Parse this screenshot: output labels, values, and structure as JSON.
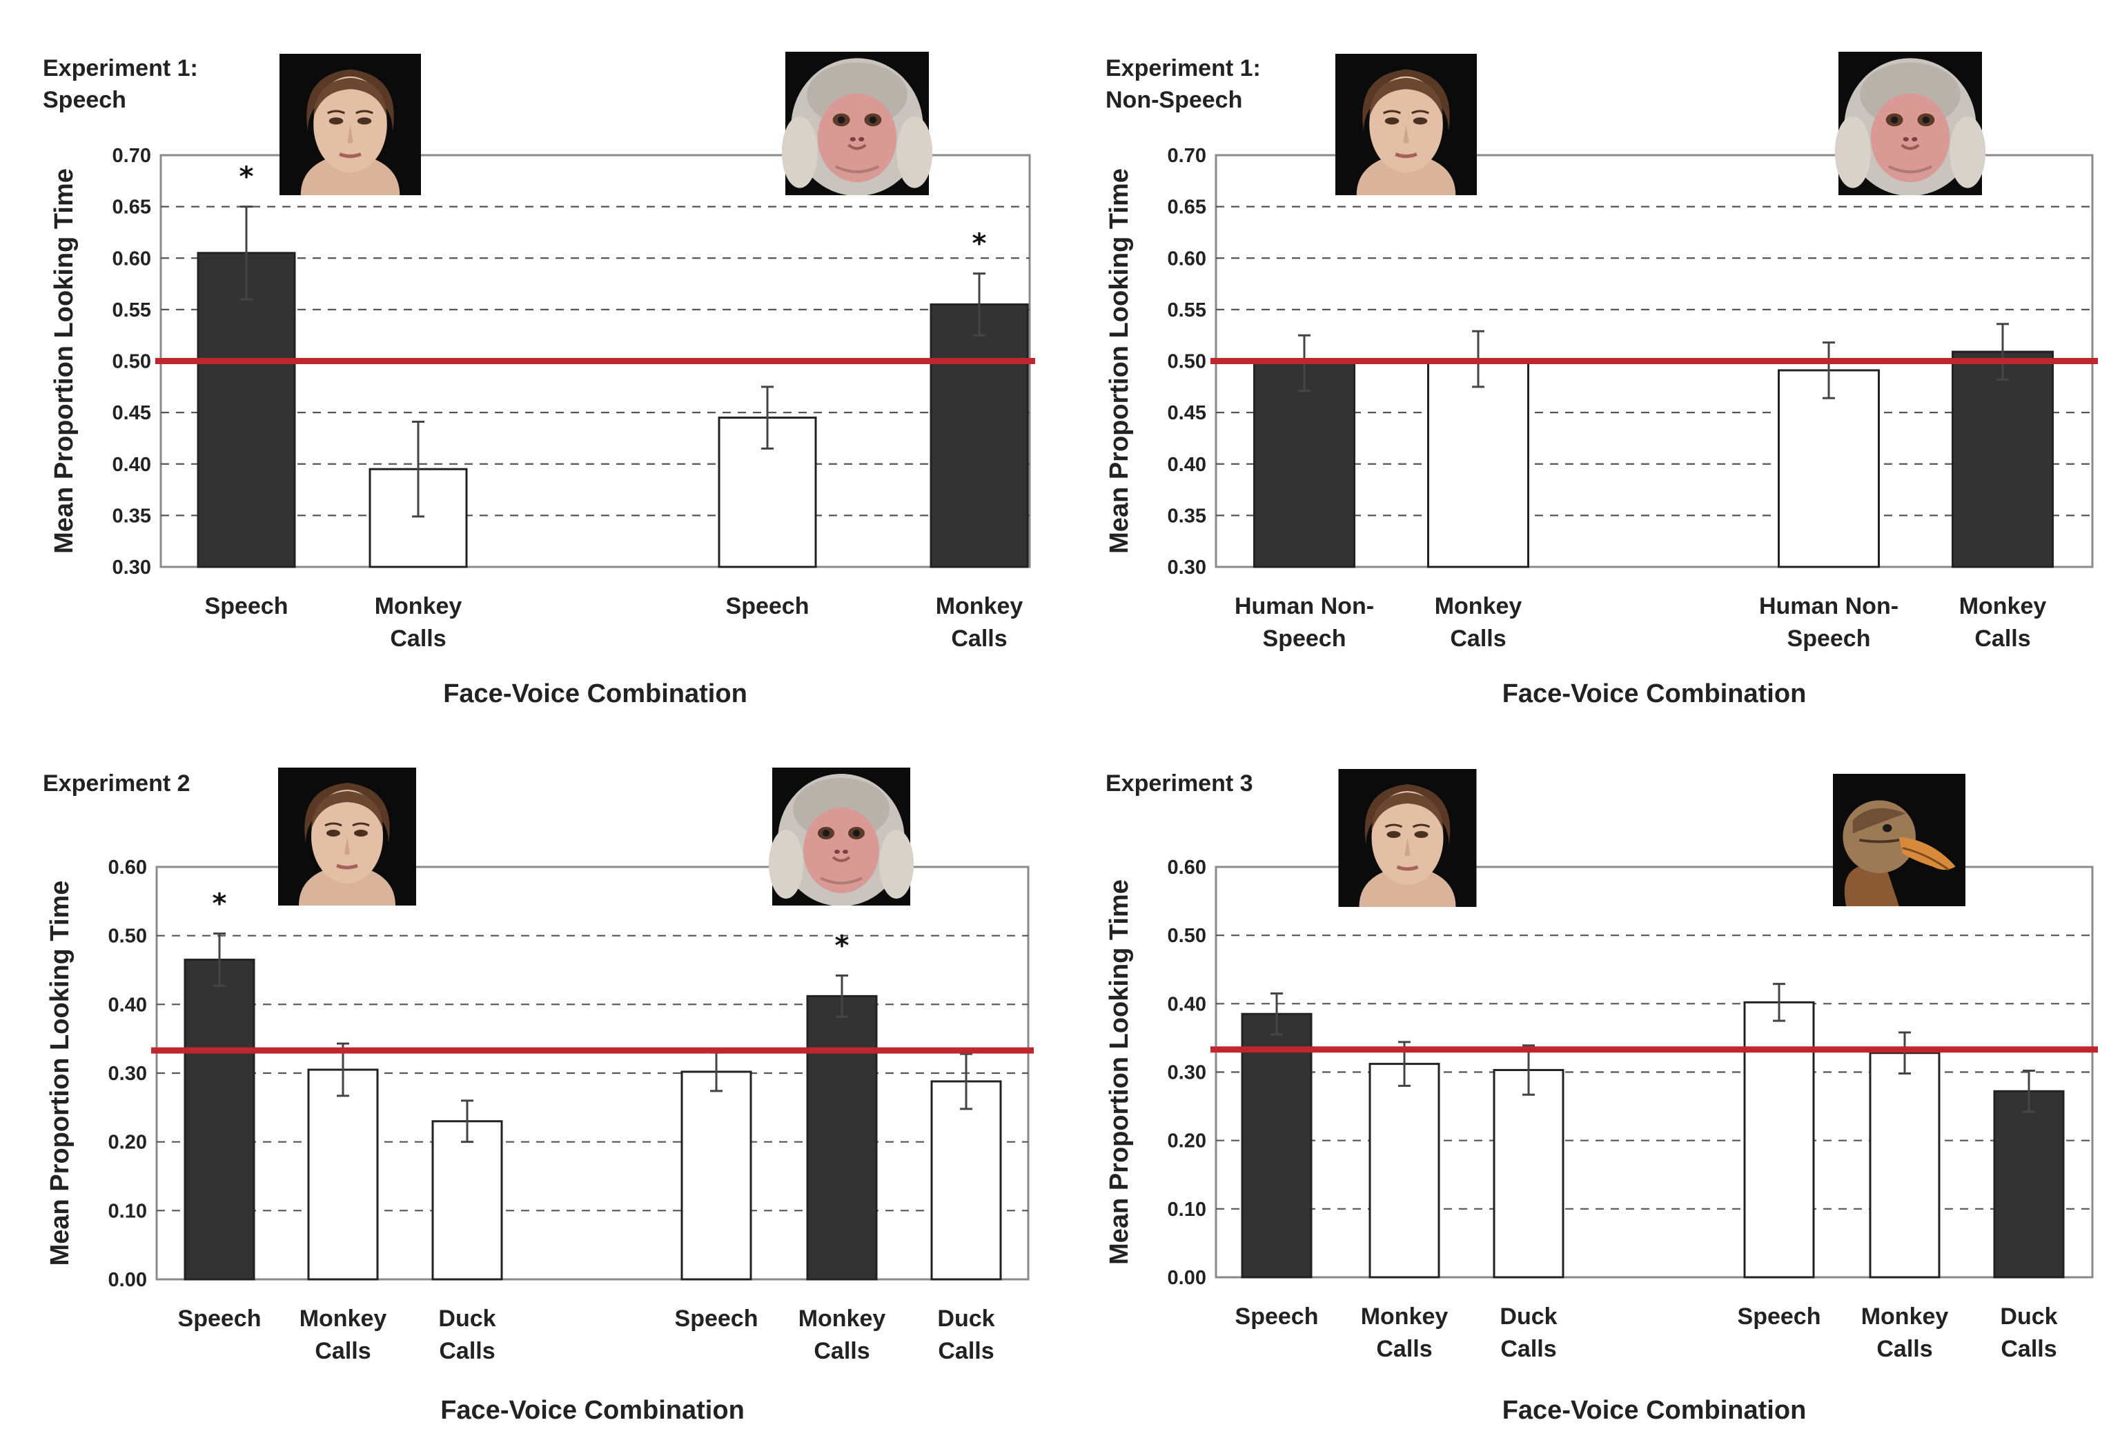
{
  "chart_data": [
    {
      "type": "bar",
      "title": "Experiment 1:\nSpeech",
      "xlabel": "Face-Voice Combination",
      "ylabel": "Mean Proportion Looking Time",
      "ylim": [
        0.3,
        0.7
      ],
      "yticks": [
        "0.70",
        "0.65",
        "0.60",
        "0.55",
        "0.50",
        "0.45",
        "0.40",
        "0.35",
        "0.30"
      ],
      "reference_line": 0.5,
      "grid": true,
      "face_images": [
        "human-face",
        "monkey-face"
      ],
      "groups": [
        {
          "face": "human-face",
          "bars": [
            {
              "label": "Speech",
              "value": 0.605,
              "error": 0.045,
              "fill": "dark",
              "sig": true
            },
            {
              "label": "Monkey\nCalls",
              "value": 0.395,
              "error": 0.046,
              "fill": "white",
              "sig": false
            }
          ]
        },
        {
          "face": "monkey-face",
          "bars": [
            {
              "label": "Speech",
              "value": 0.445,
              "error": 0.03,
              "fill": "white",
              "sig": false
            },
            {
              "label": "Monkey\nCalls",
              "value": 0.555,
              "error": 0.03,
              "fill": "dark",
              "sig": true
            }
          ]
        }
      ]
    },
    {
      "type": "bar",
      "title": "Experiment 1:\nNon-Speech",
      "xlabel": "Face-Voice Combination",
      "ylabel": "Mean Proportion Looking Time",
      "ylim": [
        0.3,
        0.7
      ],
      "yticks": [
        "0.70",
        "0.65",
        "0.60",
        "0.55",
        "0.50",
        "0.45",
        "0.40",
        "0.35",
        "0.30"
      ],
      "reference_line": 0.5,
      "grid": true,
      "face_images": [
        "human-face",
        "monkey-face"
      ],
      "groups": [
        {
          "face": "human-face",
          "bars": [
            {
              "label": "Human Non-\nSpeech",
              "value": 0.498,
              "error": 0.027,
              "fill": "dark",
              "sig": false
            },
            {
              "label": "Monkey\nCalls",
              "value": 0.502,
              "error": 0.027,
              "fill": "white",
              "sig": false
            }
          ]
        },
        {
          "face": "monkey-face",
          "bars": [
            {
              "label": "Human Non-\nSpeech",
              "value": 0.491,
              "error": 0.027,
              "fill": "white",
              "sig": false
            },
            {
              "label": "Monkey\nCalls",
              "value": 0.509,
              "error": 0.027,
              "fill": "dark",
              "sig": false
            }
          ]
        }
      ]
    },
    {
      "type": "bar",
      "title": "Experiment 2",
      "xlabel": "Face-Voice Combination",
      "ylabel": "Mean Proportion Looking Time",
      "ylim": [
        0.0,
        0.6
      ],
      "yticks": [
        "0.60",
        "0.50",
        "0.40",
        "0.30",
        "0.20",
        "0.10",
        "0.00"
      ],
      "reference_line": 0.333,
      "grid": true,
      "face_images": [
        "human-face",
        "monkey-face"
      ],
      "groups": [
        {
          "face": "human-face",
          "bars": [
            {
              "label": "Speech",
              "value": 0.465,
              "error": 0.038,
              "fill": "dark",
              "sig": true
            },
            {
              "label": "Monkey\nCalls",
              "value": 0.305,
              "error": 0.038,
              "fill": "white",
              "sig": false
            },
            {
              "label": "Duck\nCalls",
              "value": 0.23,
              "error": 0.03,
              "fill": "white",
              "sig": false
            }
          ]
        },
        {
          "face": "monkey-face",
          "bars": [
            {
              "label": "Speech",
              "value": 0.302,
              "error": 0.028,
              "fill": "white",
              "sig": false
            },
            {
              "label": "Monkey\nCalls",
              "value": 0.412,
              "error": 0.03,
              "fill": "dark",
              "sig": true
            },
            {
              "label": "Duck\nCalls",
              "value": 0.288,
              "error": 0.04,
              "fill": "white",
              "sig": false
            }
          ]
        }
      ]
    },
    {
      "type": "bar",
      "title": "Experiment 3",
      "xlabel": "Face-Voice Combination",
      "ylabel": "Mean Proportion Looking Time",
      "ylim": [
        0.0,
        0.6
      ],
      "yticks": [
        "0.60",
        "0.50",
        "0.40",
        "0.30",
        "0.20",
        "0.10",
        "0.00"
      ],
      "reference_line": 0.333,
      "grid": true,
      "face_images": [
        "human-face",
        "duck-face"
      ],
      "groups": [
        {
          "face": "human-face",
          "bars": [
            {
              "label": "Speech",
              "value": 0.385,
              "error": 0.03,
              "fill": "dark",
              "sig": false
            },
            {
              "label": "Monkey\nCalls",
              "value": 0.312,
              "error": 0.032,
              "fill": "white",
              "sig": false
            },
            {
              "label": "Duck\nCalls",
              "value": 0.303,
              "error": 0.036,
              "fill": "white",
              "sig": false
            }
          ]
        },
        {
          "face": "duck-face",
          "bars": [
            {
              "label": "Speech",
              "value": 0.402,
              "error": 0.027,
              "fill": "white",
              "sig": false
            },
            {
              "label": "Monkey\nCalls",
              "value": 0.328,
              "error": 0.03,
              "fill": "white",
              "sig": false
            },
            {
              "label": "Duck\nCalls",
              "value": 0.272,
              "error": 0.03,
              "fill": "dark",
              "sig": false
            }
          ]
        }
      ]
    }
  ],
  "colors": {
    "dark_bar": "#333333",
    "white_bar": "#ffffff",
    "reference_line": "#c0262d",
    "grid": "#555555",
    "frame": "#8a8a8a",
    "text": "#222222"
  }
}
